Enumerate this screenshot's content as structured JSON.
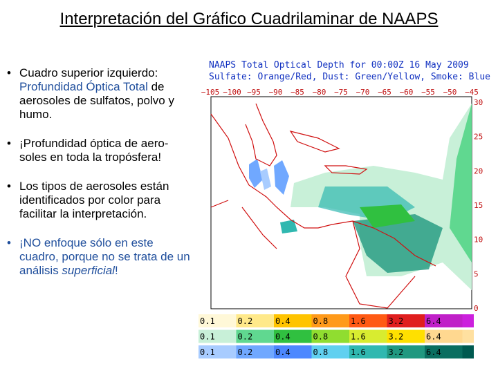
{
  "title": "Interpretación del Gráfico Cuadrilaminar de NAAPS",
  "bullets": [
    {
      "color": "#000000",
      "segments": [
        {
          "text": "Cuadro superior izquierdo: "
        },
        {
          "text": "Profundidad Óptica Total",
          "color": "#1f4e9c"
        },
        {
          "text": " de aerosoles de sulfatos, polvo y humo."
        }
      ]
    },
    {
      "color": "#000000",
      "segments": [
        {
          "text": "¡Profundidad óptica de aero-soles en toda la tropósfera!"
        }
      ]
    },
    {
      "color": "#000000",
      "segments": [
        {
          "text": "Los tipos de aerosoles están identificados por color para facilitar la interpretación."
        }
      ]
    },
    {
      "color": "#1f4e9c",
      "segments": [
        {
          "text": "¡NO enfoque sólo en este cuadro, porque no se trata de un análisis "
        },
        {
          "text": "superficial",
          "italic": true
        },
        {
          "text": "!"
        }
      ]
    }
  ],
  "map": {
    "header": [
      "NAAPS Total Optical Depth for 00:00Z 16 May 2009",
      "Sulfate: Orange/Red, Dust: Green/Yellow, Smoke: Blue"
    ],
    "lon_labels": [
      "−105",
      "−100",
      "−95",
      "−90",
      "−85",
      "−80",
      "−75",
      "−70",
      "−65",
      "−60",
      "−55",
      "−50",
      "−45"
    ],
    "lat_labels": [
      "30",
      "25",
      "20",
      "15",
      "10",
      "5",
      "0"
    ],
    "legend": [
      {
        "cells": [
          {
            "label": "0.1",
            "color": "#fff8d8"
          },
          {
            "label": "0.2",
            "color": "#ffe98a"
          },
          {
            "label": "0.4",
            "color": "#ffc400"
          },
          {
            "label": "0.8",
            "color": "#ff9a1a"
          },
          {
            "label": "1.6",
            "color": "#ff5a14"
          },
          {
            "label": "3.2",
            "color": "#e01e1e"
          },
          {
            "label": "6.4",
            "color": "#c020c8"
          }
        ],
        "tail": "#cc20dd"
      },
      {
        "cells": [
          {
            "label": "0.1",
            "color": "#c8f0d8"
          },
          {
            "label": "0.2",
            "color": "#60d890"
          },
          {
            "label": "0.4",
            "color": "#30c040"
          },
          {
            "label": "0.8",
            "color": "#90dd30"
          },
          {
            "label": "1.6",
            "color": "#d8ec30"
          },
          {
            "label": "3.2",
            "color": "#ffe000"
          },
          {
            "label": "6.4",
            "color": "#ffd890"
          }
        ],
        "tail": "#ffe0a0"
      },
      {
        "cells": [
          {
            "label": "0.1",
            "color": "#a8ccff"
          },
          {
            "label": "0.2",
            "color": "#70a8ff"
          },
          {
            "label": "0.4",
            "color": "#4d88ff"
          },
          {
            "label": "0.8",
            "color": "#60d0f0"
          },
          {
            "label": "1.6",
            "color": "#30b8b0"
          },
          {
            "label": "3.2",
            "color": "#209880"
          },
          {
            "label": "6.4",
            "color": "#0a6e60"
          }
        ],
        "tail": "#005a50"
      }
    ]
  }
}
